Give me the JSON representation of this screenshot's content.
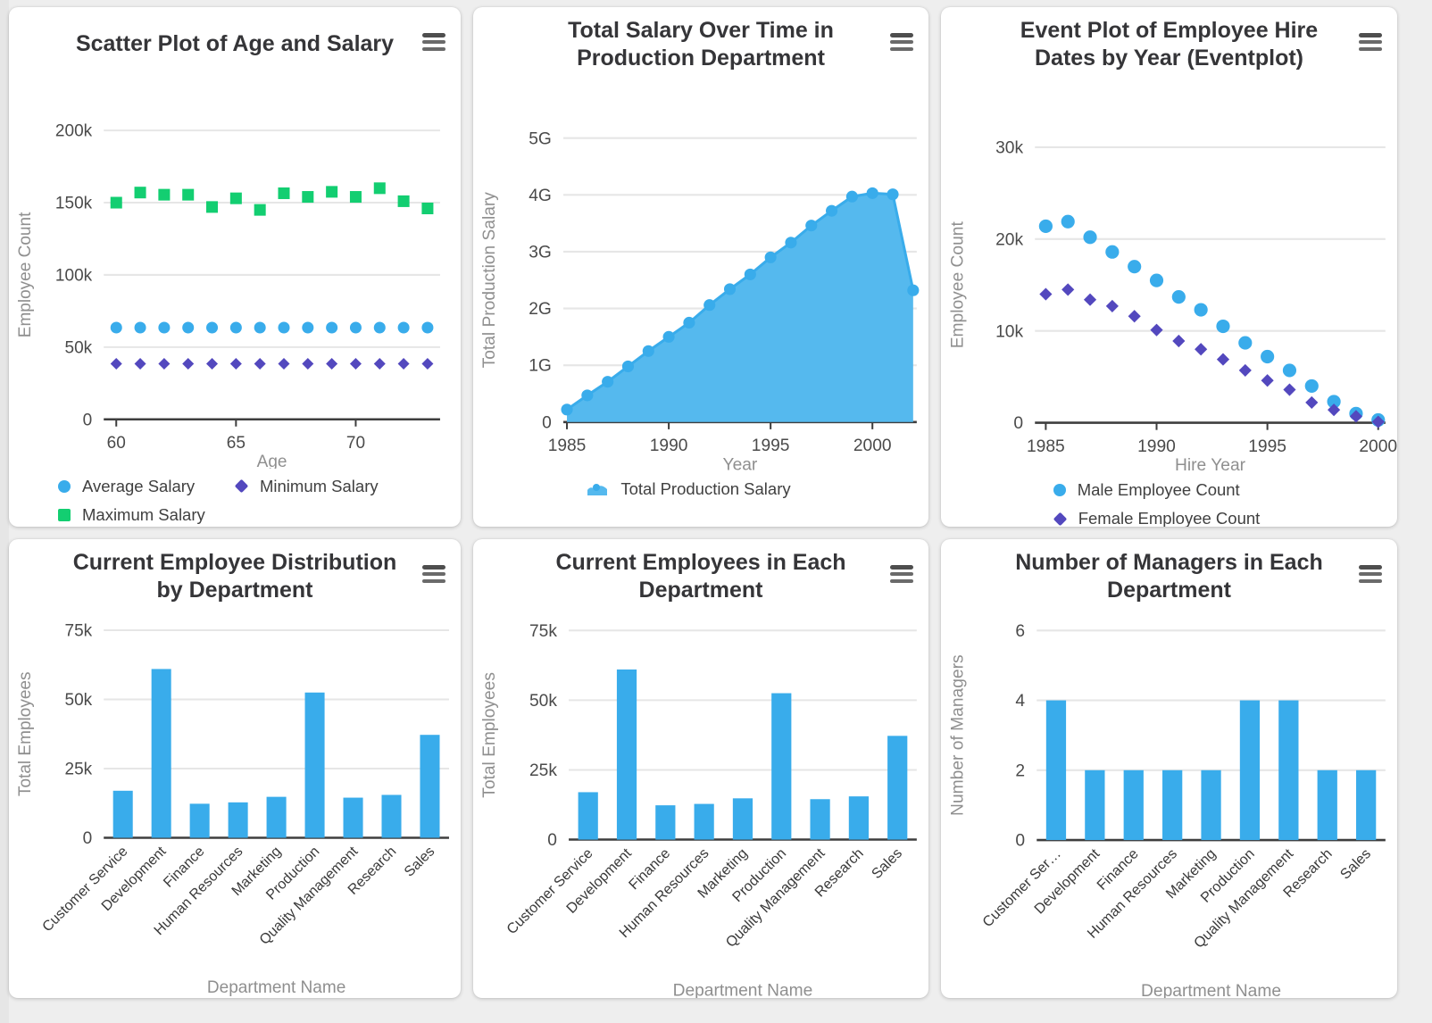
{
  "page": {
    "background": "#eeeeee",
    "card_background": "#ffffff"
  },
  "icons": {
    "card_menu": "hamburger-menu-icon"
  },
  "colors": {
    "blue": "#39ACEB",
    "area_fill": "#55B9EE",
    "green": "#13CE71",
    "purple": "#5348BE",
    "title_text": "#353538",
    "tick_text": "#4A4A4A",
    "axis_label_text": "#8F8F8F",
    "grid_line": "#E6E6E6",
    "axis_line": "#3E3E3E",
    "category_text": "#3A3A3A",
    "legend_text": "#404040",
    "menu_icon": "#6A6A6A"
  },
  "chart_data": [
    {
      "id": "age-salary-scatter",
      "type": "scatter",
      "title": "Scatter Plot of Age and Salary",
      "xlabel": "Age",
      "ylabel": "Employee Count",
      "grid": true,
      "legend_position": "bottom",
      "x": [
        60,
        61,
        62,
        63,
        64,
        65,
        66,
        67,
        68,
        69,
        70,
        71,
        72,
        73
      ],
      "xticks": [
        60,
        65,
        70
      ],
      "xlim": [
        59.5,
        73.6
      ],
      "ylim": [
        0,
        200000
      ],
      "yticks": [
        {
          "v": 0,
          "label": "0"
        },
        {
          "v": 50000,
          "label": "50k"
        },
        {
          "v": 100000,
          "label": "100k"
        },
        {
          "v": 150000,
          "label": "150k"
        },
        {
          "v": 200000,
          "label": "200k"
        }
      ],
      "series": [
        {
          "name": "Average Salary",
          "marker": "circle",
          "color": "#39ACEB",
          "values": [
            63500,
            63500,
            63500,
            63500,
            63500,
            63500,
            63500,
            63500,
            63500,
            63500,
            63500,
            63500,
            63500,
            63500
          ]
        },
        {
          "name": "Maximum Salary",
          "marker": "square",
          "color": "#13CE71",
          "values": [
            150000,
            157000,
            155500,
            155500,
            147000,
            153000,
            145000,
            156500,
            154000,
            157500,
            154000,
            160000,
            151000,
            146000
          ]
        },
        {
          "name": "Minimum Salary",
          "marker": "diamond",
          "color": "#5348BE",
          "values": [
            38500,
            38500,
            38500,
            38500,
            38500,
            38500,
            38500,
            38500,
            38500,
            38500,
            38500,
            38500,
            38500,
            38500
          ]
        }
      ],
      "legend_rows": [
        [
          "Average Salary",
          "Minimum Salary"
        ],
        [
          "Maximum Salary"
        ]
      ]
    },
    {
      "id": "production-salary-area",
      "type": "area",
      "title": "Total Salary Over Time in Production Department",
      "xlabel": "Year",
      "ylabel": "Total Production Salary",
      "grid": true,
      "legend_position": "bottom",
      "x": [
        1985,
        1986,
        1987,
        1988,
        1989,
        1990,
        1991,
        1992,
        1993,
        1994,
        1995,
        1996,
        1997,
        1998,
        1999,
        2000,
        2001,
        2002
      ],
      "xticks": [
        1985,
        1990,
        1995,
        2000
      ],
      "ylim": [
        0,
        5
      ],
      "yticks": [
        {
          "v": 0,
          "label": "0"
        },
        {
          "v": 1,
          "label": "1G"
        },
        {
          "v": 2,
          "label": "2G"
        },
        {
          "v": 3,
          "label": "3G"
        },
        {
          "v": 4,
          "label": "4G"
        },
        {
          "v": 5,
          "label": "5G"
        }
      ],
      "series": [
        {
          "name": "Total Production Salary",
          "marker": "area",
          "color": "#39ACEB",
          "fill": "#55B9EE",
          "values": [
            0.22,
            0.47,
            0.71,
            0.98,
            1.25,
            1.5,
            1.75,
            2.06,
            2.34,
            2.6,
            2.9,
            3.16,
            3.46,
            3.72,
            3.97,
            4.03,
            4.01,
            2.32
          ]
        }
      ],
      "legend_rows": [
        [
          "Total Production Salary"
        ]
      ]
    },
    {
      "id": "hire-dates-eventplot",
      "type": "scatter",
      "title": "Event Plot of Employee Hire Dates by Year (Eventplot)",
      "xlabel": "Hire Year",
      "ylabel": "Employee Count",
      "grid": true,
      "legend_position": "bottom",
      "x": [
        1985,
        1986,
        1987,
        1988,
        1989,
        1990,
        1991,
        1992,
        1993,
        1994,
        1995,
        1996,
        1997,
        1998,
        1999,
        2000
      ],
      "xticks": [
        1985,
        1990,
        1995,
        2000
      ],
      "ylim": [
        0,
        30000
      ],
      "yticks": [
        {
          "v": 0,
          "label": "0"
        },
        {
          "v": 10000,
          "label": "10k"
        },
        {
          "v": 20000,
          "label": "20k"
        },
        {
          "v": 30000,
          "label": "30k"
        }
      ],
      "series": [
        {
          "name": "Male Employee Count",
          "marker": "circle",
          "color": "#39ACEB",
          "values": [
            21400,
            21900,
            20200,
            18600,
            17000,
            15500,
            13700,
            12300,
            10500,
            8700,
            7200,
            5700,
            4000,
            2300,
            1000,
            300
          ]
        },
        {
          "name": "Female Employee Count",
          "marker": "diamond",
          "color": "#5348BE",
          "values": [
            14000,
            14500,
            13400,
            12700,
            11600,
            10100,
            8900,
            8000,
            6900,
            5700,
            4600,
            3600,
            2200,
            1400,
            700,
            100
          ]
        }
      ],
      "legend_rows": [
        [
          "Male Employee Count"
        ],
        [
          "Female Employee Count"
        ]
      ]
    },
    {
      "id": "employee-distribution-bar",
      "type": "bar",
      "title": "Current Employee Distribution by Department",
      "xlabel": "Department Name",
      "ylabel": "Total Employees",
      "grid": true,
      "bar_color": "#39ACEB",
      "categories": [
        "Customer Service",
        "Development",
        "Finance",
        "Human Resources",
        "Marketing",
        "Production",
        "Quality Management",
        "Research",
        "Sales"
      ],
      "values": [
        17000,
        61000,
        12300,
        12800,
        14800,
        52500,
        14500,
        15500,
        37200
      ],
      "ylim": [
        0,
        75000
      ],
      "yticks": [
        {
          "v": 0,
          "label": "0"
        },
        {
          "v": 25000,
          "label": "25k"
        },
        {
          "v": 50000,
          "label": "50k"
        },
        {
          "v": 75000,
          "label": "75k"
        }
      ]
    },
    {
      "id": "employees-each-department-bar",
      "type": "bar",
      "title": "Current Employees in Each Department",
      "xlabel": "Department Name",
      "ylabel": "Total Employees",
      "grid": true,
      "bar_color": "#39ACEB",
      "categories": [
        "Customer Service",
        "Development",
        "Finance",
        "Human Resources",
        "Marketing",
        "Production",
        "Quality Management",
        "Research",
        "Sales"
      ],
      "values": [
        17000,
        61000,
        12300,
        12800,
        14800,
        52500,
        14500,
        15500,
        37200
      ],
      "ylim": [
        0,
        75000
      ],
      "yticks": [
        {
          "v": 0,
          "label": "0"
        },
        {
          "v": 25000,
          "label": "25k"
        },
        {
          "v": 50000,
          "label": "50k"
        },
        {
          "v": 75000,
          "label": "75k"
        }
      ]
    },
    {
      "id": "managers-bar",
      "type": "bar",
      "title": "Number of Managers in Each Department",
      "xlabel": "Department Name",
      "ylabel": "Number of Managers",
      "grid": true,
      "bar_color": "#39ACEB",
      "categories": [
        "Customer Ser…",
        "Development",
        "Finance",
        "Human Resources",
        "Marketing",
        "Production",
        "Quality Management",
        "Research",
        "Sales"
      ],
      "values": [
        4,
        2,
        2,
        2,
        2,
        4,
        4,
        2,
        2
      ],
      "ylim": [
        0,
        6
      ],
      "yticks": [
        {
          "v": 0,
          "label": "0"
        },
        {
          "v": 2,
          "label": "2"
        },
        {
          "v": 4,
          "label": "4"
        },
        {
          "v": 6,
          "label": "6"
        }
      ]
    }
  ]
}
